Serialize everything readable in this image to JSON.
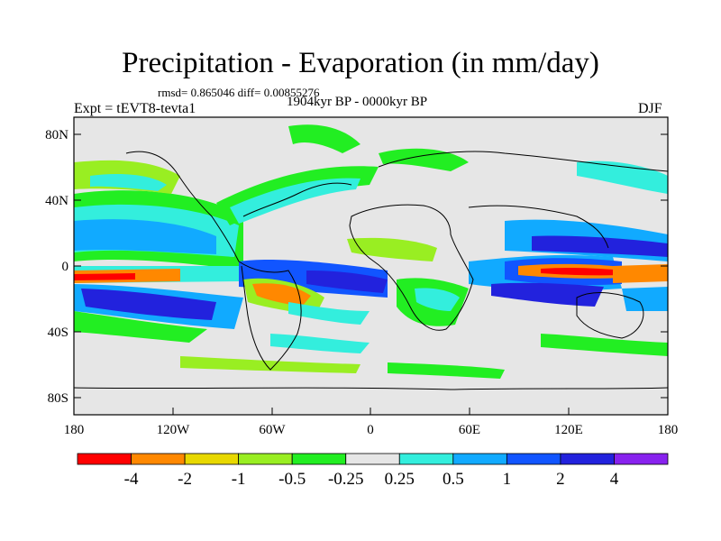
{
  "title": "Precipitation - Evaporation (in mm/day)",
  "stats": "rmsd= 0.865046 diff= 0.00855276",
  "period": "1904kyr BP - 0000kyr BP",
  "experiment": "Expt = tEVT8-tevta1",
  "season": "DJF",
  "lat_ticks": [
    "80N",
    "40N",
    "0",
    "40S",
    "80S"
  ],
  "lon_ticks": [
    "180",
    "120W",
    "60W",
    "0",
    "60E",
    "120E",
    "180"
  ],
  "colorbar": {
    "colors": [
      "#ff0000",
      "#ff8800",
      "#e8d800",
      "#99ee22",
      "#22ee22",
      "#e6e6e6",
      "#33eedd",
      "#11aaff",
      "#1155ff",
      "#2222dd",
      "#8822ee"
    ],
    "labels": [
      "-4",
      "-2",
      "-1",
      "-0.5",
      "-0.25",
      "0.25",
      "0.5",
      "1",
      "2",
      "4"
    ]
  }
}
